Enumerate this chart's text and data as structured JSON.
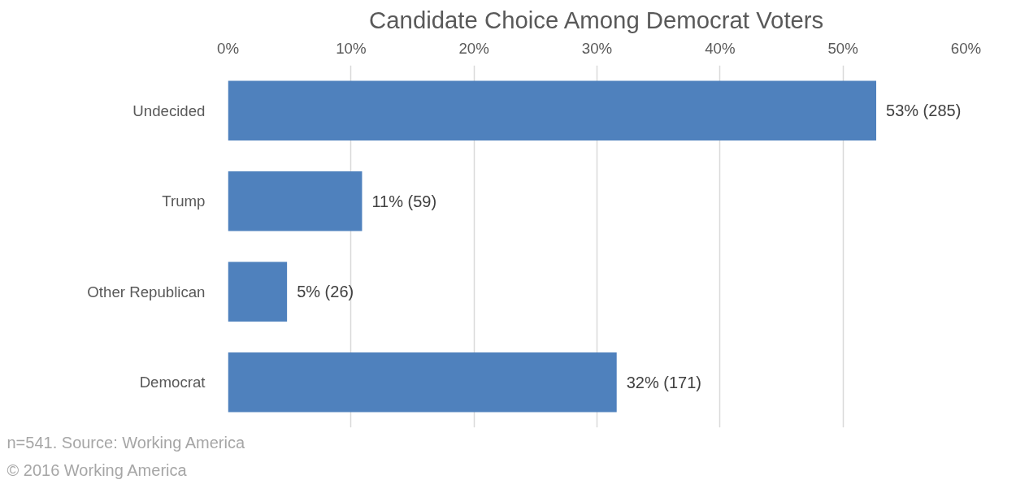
{
  "chart_data": {
    "type": "bar",
    "orientation": "horizontal",
    "title": "Candidate Choice Among Democrat Voters",
    "categories": [
      "Undecided",
      "Trump",
      "Other Republican",
      "Democrat"
    ],
    "values": [
      52.7,
      10.9,
      4.8,
      31.6
    ],
    "color": "#4f81bd",
    "value_labels": [
      "53% (285)",
      "11% (59)",
      "5% (26)",
      "32% (171)"
    ],
    "xlim": [
      0,
      60
    ],
    "xticks": [
      {
        "value": 0,
        "label": "0%"
      },
      {
        "value": 10,
        "label": "10%"
      },
      {
        "value": 20,
        "label": "20%"
      },
      {
        "value": 30,
        "label": "30%"
      },
      {
        "value": 40,
        "label": "40%"
      },
      {
        "value": 50,
        "label": "50%"
      },
      {
        "value": 60,
        "label": "60%"
      }
    ],
    "grid": "x",
    "annotations": [
      "n=541. Source: Working America",
      "© 2016 Working America"
    ]
  }
}
